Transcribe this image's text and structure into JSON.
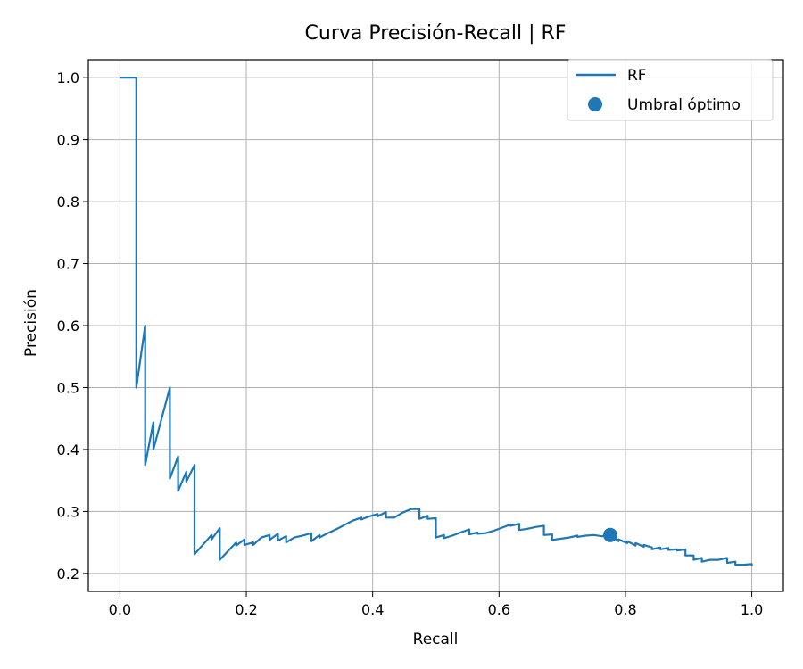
{
  "chart_data": {
    "type": "line",
    "title": "Curva Precisión-Recall | RF",
    "xlabel": "Recall",
    "ylabel": "Precisión",
    "xlim": [
      -0.05,
      1.05
    ],
    "ylim": [
      0.171,
      1.029
    ],
    "xticks": [
      0.0,
      0.2,
      0.4,
      0.6,
      0.8,
      1.0
    ],
    "yticks": [
      0.2,
      0.3,
      0.4,
      0.5,
      0.6,
      0.7,
      0.8,
      0.9,
      1.0
    ],
    "xtick_labels": [
      "0.0",
      "0.2",
      "0.4",
      "0.6",
      "0.8",
      "1.0"
    ],
    "ytick_labels": [
      "0.2",
      "0.3",
      "0.4",
      "0.5",
      "0.6",
      "0.7",
      "0.8",
      "0.9",
      "1.0"
    ],
    "grid": true,
    "legend_position": "top-right",
    "colors": {
      "series": "#1f77b4",
      "grid": "#b0b0b0"
    },
    "series": [
      {
        "name": "RF",
        "kind": "line",
        "points": [
          [
            0.0,
            1.0
          ],
          [
            0.026,
            1.0
          ],
          [
            0.026,
            0.5
          ],
          [
            0.04,
            0.6
          ],
          [
            0.04,
            0.375
          ],
          [
            0.053,
            0.444
          ],
          [
            0.053,
            0.4
          ],
          [
            0.079,
            0.5
          ],
          [
            0.079,
            0.353
          ],
          [
            0.092,
            0.389
          ],
          [
            0.092,
            0.333
          ],
          [
            0.105,
            0.364
          ],
          [
            0.105,
            0.348
          ],
          [
            0.118,
            0.375
          ],
          [
            0.118,
            0.231
          ],
          [
            0.145,
            0.262
          ],
          [
            0.145,
            0.255
          ],
          [
            0.158,
            0.273
          ],
          [
            0.158,
            0.222
          ],
          [
            0.184,
            0.25
          ],
          [
            0.184,
            0.245
          ],
          [
            0.197,
            0.255
          ],
          [
            0.197,
            0.246
          ],
          [
            0.211,
            0.25
          ],
          [
            0.211,
            0.246
          ],
          [
            0.224,
            0.258
          ],
          [
            0.237,
            0.262
          ],
          [
            0.237,
            0.254
          ],
          [
            0.25,
            0.264
          ],
          [
            0.25,
            0.253
          ],
          [
            0.263,
            0.26
          ],
          [
            0.263,
            0.25
          ],
          [
            0.276,
            0.258
          ],
          [
            0.289,
            0.261
          ],
          [
            0.303,
            0.265
          ],
          [
            0.303,
            0.252
          ],
          [
            0.316,
            0.262
          ],
          [
            0.316,
            0.258
          ],
          [
            0.329,
            0.265
          ],
          [
            0.342,
            0.271
          ],
          [
            0.355,
            0.278
          ],
          [
            0.368,
            0.285
          ],
          [
            0.382,
            0.29
          ],
          [
            0.382,
            0.287
          ],
          [
            0.395,
            0.292
          ],
          [
            0.408,
            0.296
          ],
          [
            0.408,
            0.292
          ],
          [
            0.421,
            0.299
          ],
          [
            0.421,
            0.29
          ],
          [
            0.434,
            0.29
          ],
          [
            0.447,
            0.298
          ],
          [
            0.461,
            0.304
          ],
          [
            0.474,
            0.304
          ],
          [
            0.474,
            0.288
          ],
          [
            0.487,
            0.293
          ],
          [
            0.487,
            0.288
          ],
          [
            0.5,
            0.289
          ],
          [
            0.5,
            0.258
          ],
          [
            0.513,
            0.262
          ],
          [
            0.513,
            0.257
          ],
          [
            0.526,
            0.261
          ],
          [
            0.539,
            0.266
          ],
          [
            0.553,
            0.271
          ],
          [
            0.553,
            0.263
          ],
          [
            0.566,
            0.266
          ],
          [
            0.566,
            0.264
          ],
          [
            0.579,
            0.265
          ],
          [
            0.592,
            0.269
          ],
          [
            0.605,
            0.274
          ],
          [
            0.618,
            0.279
          ],
          [
            0.618,
            0.277
          ],
          [
            0.632,
            0.28
          ],
          [
            0.632,
            0.27
          ],
          [
            0.645,
            0.272
          ],
          [
            0.658,
            0.275
          ],
          [
            0.671,
            0.277
          ],
          [
            0.671,
            0.262
          ],
          [
            0.684,
            0.263
          ],
          [
            0.684,
            0.254
          ],
          [
            0.697,
            0.256
          ],
          [
            0.711,
            0.258
          ],
          [
            0.724,
            0.261
          ],
          [
            0.724,
            0.259
          ],
          [
            0.737,
            0.261
          ],
          [
            0.75,
            0.262
          ],
          [
            0.763,
            0.26
          ],
          [
            0.776,
            0.262
          ],
          [
            0.789,
            0.252
          ],
          [
            0.789,
            0.255
          ],
          [
            0.803,
            0.249
          ],
          [
            0.803,
            0.252
          ],
          [
            0.816,
            0.245
          ],
          [
            0.816,
            0.249
          ],
          [
            0.829,
            0.243
          ],
          [
            0.829,
            0.246
          ],
          [
            0.842,
            0.242
          ],
          [
            0.842,
            0.239
          ],
          [
            0.855,
            0.242
          ],
          [
            0.855,
            0.239
          ],
          [
            0.868,
            0.241
          ],
          [
            0.868,
            0.238
          ],
          [
            0.882,
            0.239
          ],
          [
            0.882,
            0.237
          ],
          [
            0.895,
            0.239
          ],
          [
            0.895,
            0.229
          ],
          [
            0.908,
            0.229
          ],
          [
            0.908,
            0.222
          ],
          [
            0.921,
            0.225
          ],
          [
            0.921,
            0.219
          ],
          [
            0.934,
            0.222
          ],
          [
            0.947,
            0.222
          ],
          [
            0.961,
            0.225
          ],
          [
            0.961,
            0.217
          ],
          [
            0.974,
            0.219
          ],
          [
            0.974,
            0.214
          ],
          [
            0.987,
            0.214
          ],
          [
            1.0,
            0.215
          ],
          [
            1.0,
            0.212
          ]
        ]
      },
      {
        "name": "Umbral óptimo",
        "kind": "scatter",
        "points": [
          [
            0.776,
            0.262
          ]
        ]
      }
    ]
  }
}
